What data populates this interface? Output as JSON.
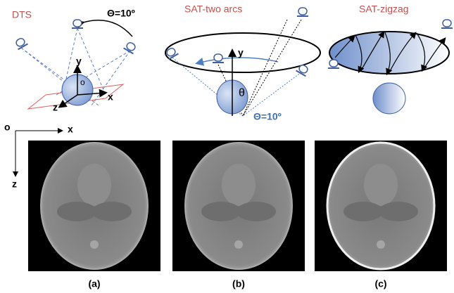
{
  "panels": [
    {
      "title": "DTS",
      "angle": "Θ=10º",
      "axes": [
        "y",
        "o",
        "z",
        "x"
      ]
    },
    {
      "title": "SAT-two arcs",
      "axis": "y",
      "theta": "θ",
      "angle": "Θ=10º"
    },
    {
      "title": "SAT-zigzag"
    }
  ],
  "coords": {
    "origin": "o",
    "x": "x",
    "z": "z"
  },
  "images": [
    {
      "label": "(a)"
    },
    {
      "label": "(b)"
    },
    {
      "label": "(c)"
    }
  ]
}
